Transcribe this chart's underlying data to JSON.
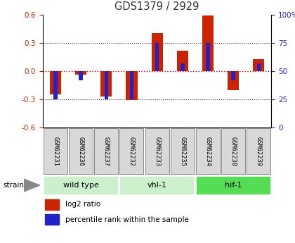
{
  "title": "GDS1379 / 2929",
  "samples": [
    "GSM62231",
    "GSM62236",
    "GSM62237",
    "GSM62232",
    "GSM62233",
    "GSM62235",
    "GSM62234",
    "GSM62238",
    "GSM62239"
  ],
  "log2_ratio": [
    -0.25,
    -0.04,
    -0.27,
    -0.31,
    0.4,
    0.22,
    0.59,
    -0.2,
    0.13
  ],
  "percentile_rank": [
    25,
    42,
    25,
    25,
    75,
    57,
    75,
    42,
    57
  ],
  "ylim": [
    -0.6,
    0.6
  ],
  "yticks_left": [
    -0.6,
    -0.3,
    0.0,
    0.3,
    0.6
  ],
  "groups": [
    {
      "label": "wild type",
      "start": 0,
      "end": 3,
      "color": "#ccf0cc"
    },
    {
      "label": "vhl-1",
      "start": 3,
      "end": 6,
      "color": "#ccf0cc"
    },
    {
      "label": "hif-1",
      "start": 6,
      "end": 9,
      "color": "#55dd55"
    }
  ],
  "bar_color_red": "#cc2200",
  "bar_color_blue": "#2222cc",
  "zero_line_color": "#cc0000",
  "dotted_line_color": "#333333",
  "sample_bg_color": "#d8d8d8",
  "title_color": "#333333",
  "left_tick_color": "#cc2200",
  "right_tick_color": "#2222cc"
}
